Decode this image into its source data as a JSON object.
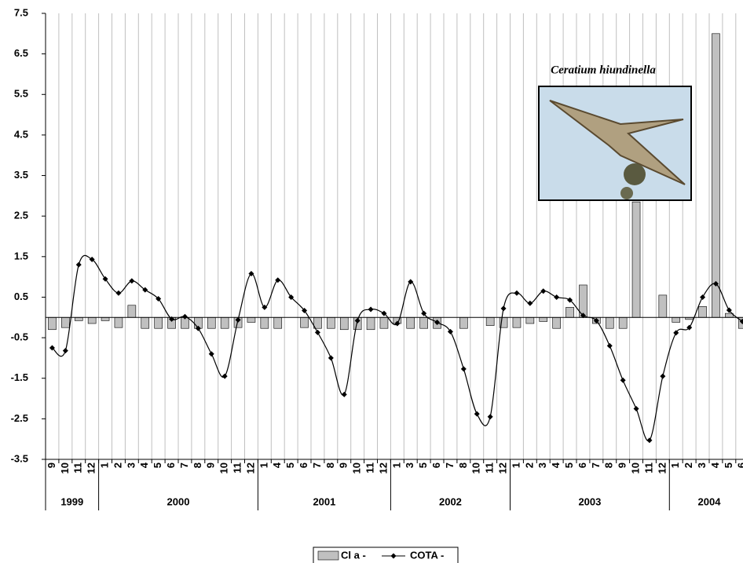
{
  "chart_data": {
    "type": "bar-line",
    "category_groups": [
      {
        "label": "1999",
        "categories": [
          "9",
          "10",
          "11",
          "12"
        ]
      },
      {
        "label": "2000",
        "categories": [
          "1",
          "2",
          "3",
          "4",
          "5",
          "6",
          "7",
          "8",
          "9",
          "10",
          "11",
          "12"
        ]
      },
      {
        "label": "2001",
        "categories": [
          "1",
          "4",
          "5",
          "6",
          "7",
          "8",
          "9",
          "10",
          "11",
          "12"
        ]
      },
      {
        "label": "2002",
        "categories": [
          "1",
          "3",
          "5",
          "6",
          "7",
          "8",
          "10",
          "11",
          "12"
        ]
      },
      {
        "label": "2003",
        "categories": [
          "1",
          "2",
          "3",
          "4",
          "5",
          "6",
          "7",
          "8",
          "9",
          "10",
          "11",
          "12"
        ]
      },
      {
        "label": "2004",
        "categories": [
          "1",
          "2",
          "3",
          "4",
          "5",
          "6"
        ]
      }
    ],
    "series": [
      {
        "name": "Cl a -",
        "type": "bar",
        "color": "#c0c0c0",
        "values": [
          -0.3,
          -0.25,
          -0.08,
          -0.15,
          -0.08,
          -0.25,
          0.3,
          -0.27,
          -0.27,
          -0.27,
          -0.27,
          -0.27,
          -0.27,
          -0.27,
          -0.25,
          -0.12,
          -0.27,
          -0.27,
          0,
          -0.25,
          -0.27,
          -0.27,
          -0.3,
          -0.3,
          -0.3,
          -0.27,
          -0.15,
          -0.27,
          -0.27,
          -0.27,
          0,
          -0.27,
          0,
          -0.2,
          -0.25,
          -0.25,
          -0.15,
          -0.1,
          -0.27,
          0.25,
          0.8,
          -0.15,
          -0.27,
          -0.27,
          2.85,
          0,
          0.55,
          -0.12,
          -0.05,
          0.27,
          7.0,
          0.1,
          -0.27
        ]
      },
      {
        "name": "COTA -",
        "type": "line",
        "color": "#000000",
        "values": [
          -0.75,
          -0.82,
          1.3,
          1.43,
          0.95,
          0.6,
          0.9,
          0.68,
          0.46,
          -0.04,
          0.02,
          -0.27,
          -0.9,
          -1.45,
          -0.06,
          1.08,
          0.25,
          0.92,
          0.5,
          0.17,
          -0.37,
          -1.0,
          -1.9,
          -0.08,
          0.2,
          0.1,
          -0.15,
          0.88,
          0.1,
          -0.12,
          -0.35,
          -1.27,
          -2.38,
          -2.45,
          0.22,
          0.6,
          0.35,
          0.65,
          0.5,
          0.43,
          0.05,
          -0.08,
          -0.7,
          -1.55,
          -2.25,
          -3.03,
          -1.45,
          -0.38,
          -0.25,
          0.5,
          0.83,
          0.18,
          -0.1
        ]
      }
    ],
    "ylim": [
      -3.5,
      7.5
    ],
    "yticks": [
      7.5,
      6.5,
      5.5,
      4.5,
      3.5,
      2.5,
      1.5,
      0.5,
      -0.5,
      -1.5,
      -2.5,
      -3.5
    ],
    "grid": "vertical",
    "legend": "bottom",
    "annotation": "Ceratium hiundinella"
  }
}
